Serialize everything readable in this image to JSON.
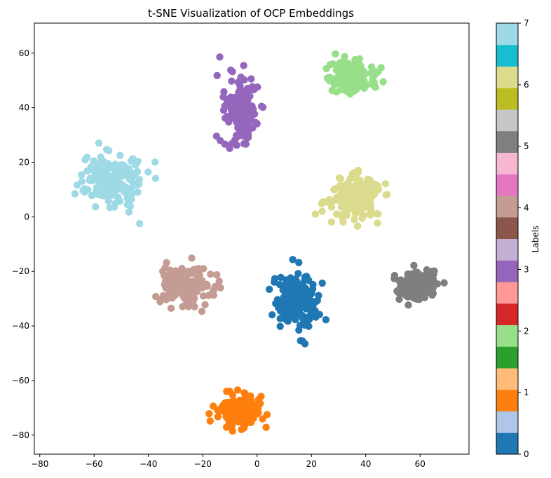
{
  "chart_data": {
    "type": "scatter",
    "title": "t-SNE Visualization of OCP Embeddings",
    "xlabel": "",
    "ylabel": "",
    "xlim": [
      -82,
      78
    ],
    "ylim": [
      -87,
      71
    ],
    "xticks": [
      -80,
      -60,
      -40,
      -20,
      0,
      20,
      40,
      60
    ],
    "yticks": [
      -80,
      -60,
      -40,
      -20,
      0,
      20,
      40,
      60
    ],
    "grid": false,
    "colorbar": {
      "label": "Labels",
      "colormap": "tab20",
      "range": [
        0,
        7
      ],
      "ticks": [
        0,
        1,
        2,
        3,
        4,
        5,
        6,
        7
      ],
      "colors": [
        "#1f77b4",
        "#aec7e8",
        "#ff7f0e",
        "#ffbb78",
        "#2ca02c",
        "#98df8a",
        "#d62728",
        "#ff9896",
        "#9467bd",
        "#c5b0d5",
        "#8c564b",
        "#c49c94",
        "#e377c2",
        "#f7b6d2",
        "#7f7f7f",
        "#c7c7c7",
        "#bcbd22",
        "#dbdb8d",
        "#17becf",
        "#9edae5"
      ]
    },
    "clusters": [
      {
        "label": 0,
        "color": "#1f77b4",
        "center": [
          14,
          -31
        ],
        "spread": [
          7,
          9
        ],
        "extent": {
          "x": [
            3,
            27
          ],
          "y": [
            -48,
            -14
          ]
        }
      },
      {
        "label": 1,
        "color": "#ff7f0e",
        "center": [
          -6,
          -71
        ],
        "spread": [
          7,
          5
        ],
        "extent": {
          "x": [
            -20,
            6
          ],
          "y": [
            -80,
            -58
          ]
        }
      },
      {
        "label": 2,
        "color": "#98df8a",
        "center": [
          35,
          51
        ],
        "spread": [
          7,
          5
        ],
        "extent": {
          "x": [
            24,
            52
          ],
          "y": [
            41,
            63
          ]
        }
      },
      {
        "label": 3,
        "color": "#9467bd",
        "center": [
          -6,
          39
        ],
        "spread": [
          6,
          11
        ],
        "extent": {
          "x": [
            -20,
            7
          ],
          "y": [
            15,
            62
          ]
        }
      },
      {
        "label": 4,
        "color": "#c49c94",
        "center": [
          -26,
          -25
        ],
        "spread": [
          9,
          7
        ],
        "extent": {
          "x": [
            -41,
            -9
          ],
          "y": [
            -40,
            -7
          ]
        }
      },
      {
        "label": 5,
        "color": "#7f7f7f",
        "center": [
          59,
          -25
        ],
        "spread": [
          6,
          5
        ],
        "extent": {
          "x": [
            49,
            72
          ],
          "y": [
            -35,
            -13
          ]
        }
      },
      {
        "label": 6,
        "color": "#dbdb8d",
        "center": [
          36,
          7
        ],
        "spread": [
          8,
          7
        ],
        "extent": {
          "x": [
            19,
            54
          ],
          "y": [
            -7,
            22
          ]
        }
      },
      {
        "label": 7,
        "color": "#9edae5",
        "center": [
          -54,
          14
        ],
        "spread": [
          10,
          9
        ],
        "extent": {
          "x": [
            -75,
            -33
          ],
          "y": [
            -5,
            34
          ]
        }
      }
    ]
  }
}
